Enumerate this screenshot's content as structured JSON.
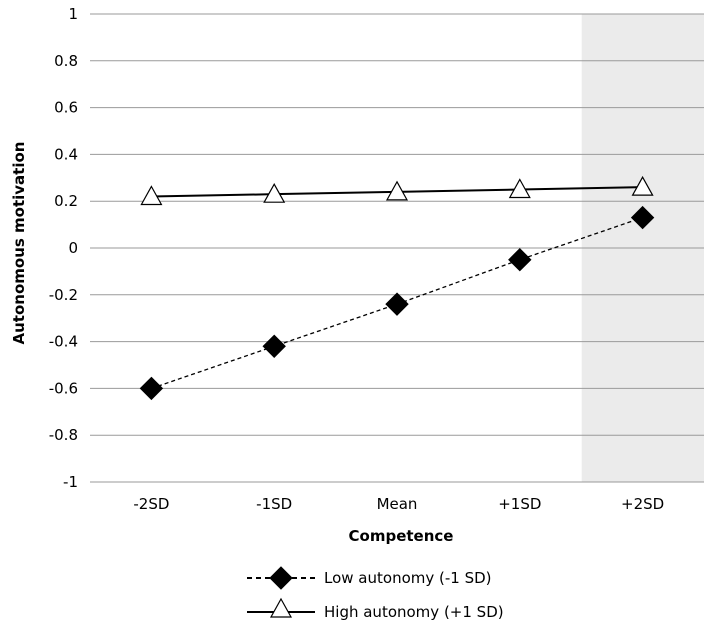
{
  "chart_data": {
    "type": "line",
    "xlabel": "Competence",
    "ylabel": "Autonomous motivation",
    "categories": [
      "-2SD",
      "-1SD",
      "Mean",
      "+1SD",
      "+2SD"
    ],
    "ylim": [
      -1,
      1
    ],
    "yticks": [
      1,
      0.8,
      0.6,
      0.4,
      0.2,
      0,
      -0.2,
      -0.4,
      -0.6,
      -0.8,
      -1
    ],
    "grid": true,
    "legend_position": "bottom",
    "shaded_region": {
      "from_category": "+2SD",
      "color": "#ebebeb"
    },
    "series": [
      {
        "name": "Low autonomy (-1 SD)",
        "values": [
          -0.6,
          -0.42,
          -0.24,
          -0.05,
          0.13
        ],
        "line": "dashed",
        "marker": "filled-diamond",
        "color": "#000000"
      },
      {
        "name": "High autonomy (+1 SD)",
        "values": [
          0.22,
          0.23,
          0.24,
          0.25,
          0.26
        ],
        "line": "solid",
        "marker": "open-triangle",
        "color": "#000000"
      }
    ]
  }
}
